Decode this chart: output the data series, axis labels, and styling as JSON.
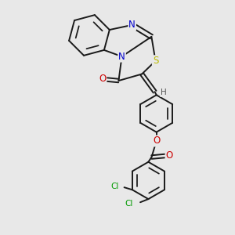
{
  "background_color": "#e8e8e8",
  "bond_color": "#1a1a1a",
  "bond_width": 1.4,
  "atom_colors": {
    "N": "#0000cc",
    "O": "#cc0000",
    "S": "#bbbb00",
    "Cl": "#009900",
    "C": "#1a1a1a",
    "H": "#555555"
  },
  "font_size": 8.5
}
